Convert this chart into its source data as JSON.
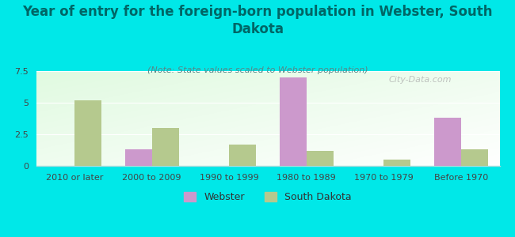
{
  "title": "Year of entry for the foreign-born population in Webster, South\nDakota",
  "subtitle": "(Note: State values scaled to Webster population)",
  "categories": [
    "2010 or later",
    "2000 to 2009",
    "1990 to 1999",
    "1980 to 1989",
    "1970 to 1979",
    "Before 1970"
  ],
  "webster_values": [
    0,
    1.3,
    0,
    7.0,
    0,
    3.8
  ],
  "sd_values": [
    5.2,
    3.0,
    1.7,
    1.2,
    0.5,
    1.3
  ],
  "webster_color": "#cc99cc",
  "sd_color": "#b5c98e",
  "background_color": "#00e8e8",
  "ylim": [
    0,
    7.5
  ],
  "yticks": [
    0,
    2.5,
    5,
    7.5
  ],
  "legend_labels": [
    "Webster",
    "South Dakota"
  ],
  "bar_width": 0.35,
  "title_fontsize": 12,
  "subtitle_fontsize": 8,
  "tick_fontsize": 8,
  "legend_fontsize": 9,
  "title_color": "#006666",
  "subtitle_color": "#558888",
  "watermark": "City-Data.com"
}
